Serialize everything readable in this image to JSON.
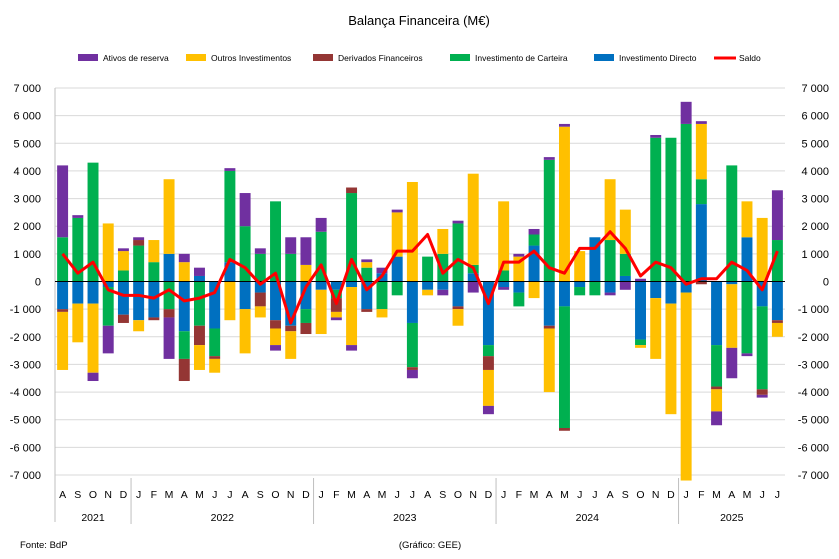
{
  "chart_data": {
    "type": "bar",
    "title": "Balança Financeira (M€)",
    "stacked": true,
    "ylim": [
      -7000,
      7000
    ],
    "yticks": [
      7000,
      6000,
      5000,
      4000,
      3000,
      2000,
      1000,
      0,
      -1000,
      -2000,
      -3000,
      -4000,
      -5000,
      -6000,
      -7000
    ],
    "ytick_labels": [
      "7 000",
      "6 000",
      "5 000",
      "4 000",
      "3 000",
      "2 000",
      "1 000",
      "0",
      "-1 000",
      "-2 000",
      "-3 000",
      "-4 000",
      "-5 000",
      "-6 000",
      "-7 000"
    ],
    "gridlines": true,
    "legend_position": "top",
    "month_labels": [
      "A",
      "S",
      "O",
      "N",
      "D",
      "J",
      "F",
      "M",
      "A",
      "M",
      "J",
      "J",
      "A",
      "S",
      "O",
      "N",
      "D",
      "J",
      "F",
      "M",
      "A",
      "M",
      "J",
      "J",
      "A",
      "S",
      "O",
      "N",
      "D",
      "J",
      "F",
      "M",
      "A",
      "M",
      "J",
      "J",
      "A",
      "S",
      "O",
      "N",
      "D",
      "J",
      "F",
      "M",
      "A",
      "M",
      "J",
      "J"
    ],
    "year_labels": [
      {
        "label": "2021",
        "start": 0,
        "end": 5
      },
      {
        "label": "2022",
        "start": 5,
        "end": 17
      },
      {
        "label": "2023",
        "start": 17,
        "end": 29
      },
      {
        "label": "2024",
        "start": 29,
        "end": 41
      },
      {
        "label": "2025",
        "start": 41,
        "end": 48
      }
    ],
    "series": [
      {
        "name": "Investimento Directo",
        "color": "#0070C0",
        "values": [
          -1000,
          -800,
          -800,
          -200,
          -1200,
          -1400,
          -1300,
          1000,
          -1800,
          200,
          -1700,
          700,
          -1000,
          -400,
          -1400,
          -1600,
          -1000,
          -300,
          -300,
          -200,
          -1000,
          300,
          900,
          -1500,
          -300,
          -300,
          -900,
          300,
          -2300,
          -200,
          -400,
          1300,
          -1600,
          -900,
          -200,
          1600,
          -400,
          200,
          -2100,
          -600,
          -800,
          -400,
          2800,
          -2300,
          -100,
          1600,
          -900,
          -1400
        ]
      },
      {
        "name": "Investimento de Carteira",
        "color": "#00B050",
        "values": [
          1600,
          2300,
          4300,
          -1400,
          400,
          1300,
          700,
          -1000,
          -1000,
          -1600,
          -1000,
          3300,
          2000,
          1000,
          2900,
          1000,
          -500,
          1800,
          -300,
          3200,
          500,
          -1000,
          -500,
          -1600,
          900,
          1000,
          2100,
          300,
          -400,
          400,
          -500,
          400,
          4400,
          -4400,
          -300,
          -500,
          1500,
          800,
          -200,
          5200,
          5200,
          5700,
          900,
          -1500,
          4200,
          -2600,
          -3000,
          1500
        ]
      },
      {
        "name": "Derivados Financeiros",
        "color": "#943634",
        "values": [
          -100,
          0,
          0,
          0,
          -300,
          200,
          -100,
          -300,
          -800,
          -700,
          -100,
          0,
          0,
          -500,
          -300,
          -200,
          -400,
          0,
          -500,
          200,
          -100,
          0,
          0,
          -100,
          0,
          0,
          -100,
          0,
          -500,
          0,
          0,
          0,
          -100,
          -100,
          0,
          0,
          0,
          0,
          0,
          0,
          0,
          0,
          -100,
          -100,
          0,
          0,
          -200,
          -100
        ]
      },
      {
        "name": "Outros Investimentos",
        "color": "#FFC000",
        "values": [
          -2100,
          -1400,
          -2500,
          2100,
          700,
          -400,
          800,
          2700,
          700,
          -900,
          -500,
          -1400,
          -1600,
          -400,
          -600,
          -1000,
          600,
          -1600,
          -200,
          -2100,
          200,
          -300,
          1600,
          3600,
          -200,
          900,
          -600,
          3300,
          -1300,
          2500,
          900,
          -600,
          -2300,
          5600,
          1100,
          0,
          2200,
          1600,
          -100,
          -2200,
          -4000,
          -6800,
          2000,
          -800,
          -2300,
          1300,
          2300,
          -500
        ]
      },
      {
        "name": "Ativos de reserva",
        "color": "#7030A0",
        "values": [
          2600,
          100,
          -300,
          -1000,
          100,
          100,
          0,
          -1500,
          300,
          300,
          0,
          100,
          1200,
          200,
          -200,
          600,
          1000,
          500,
          -100,
          -200,
          100,
          200,
          100,
          -300,
          0,
          -200,
          100,
          -400,
          -300,
          -100,
          100,
          200,
          100,
          100,
          0,
          0,
          -100,
          -300,
          100,
          100,
          0,
          800,
          100,
          -500,
          -1100,
          -100,
          -100,
          1800
        ]
      },
      {
        "name": "Saldo",
        "color": "#FF0000",
        "type": "line",
        "values": [
          1000,
          300,
          700,
          -300,
          -500,
          -500,
          -600,
          -300,
          -700,
          -600,
          -400,
          800,
          500,
          -100,
          300,
          -1500,
          -200,
          600,
          -800,
          800,
          -300,
          200,
          1100,
          1100,
          1700,
          300,
          800,
          500,
          -800,
          700,
          700,
          1100,
          500,
          300,
          1200,
          1200,
          1800,
          1200,
          200,
          700,
          500,
          -100,
          100,
          100,
          700,
          400,
          -300,
          1100
        ]
      }
    ]
  },
  "footer": {
    "source": "Fonte: BdP",
    "credit": "(Gráfico: GEE)"
  }
}
